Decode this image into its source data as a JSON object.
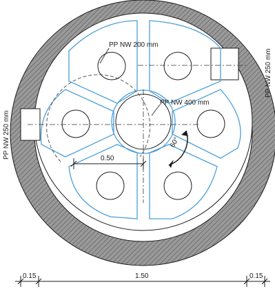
{
  "labels": {
    "pipe_inner": "PP NW 200 mm",
    "pipe_center": "PP NW 400 mm",
    "pipe_side_left": "PP NW 250 mm",
    "pipe_side_right": "PP NW 250 mm",
    "rotation_angle": "60°"
  },
  "dimensions": {
    "chamber_spacing": "0.50",
    "wall_left": "0.15",
    "inner_diameter": "1.50",
    "wall_right": "0.15"
  },
  "colors": {
    "wall_hatch": "#8c8c8c",
    "chamber_outline": "#4a9fd8",
    "line": "#1a1a1a"
  }
}
